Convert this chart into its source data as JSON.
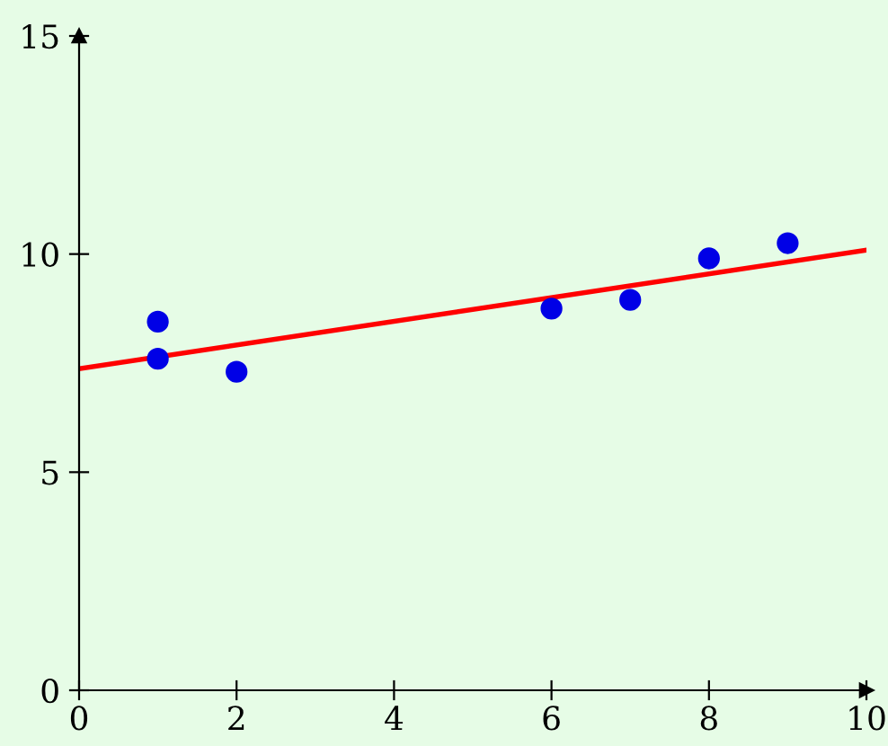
{
  "chart_data": {
    "type": "scatter",
    "xlim": [
      0,
      10
    ],
    "ylim": [
      0,
      15
    ],
    "xticks": [
      0,
      2,
      4,
      6,
      8,
      10
    ],
    "yticks": [
      0,
      5,
      10,
      15
    ],
    "grid": false,
    "series": [
      {
        "marker": "circle",
        "color": "#0000e6",
        "x": [
          1,
          1,
          2,
          6,
          7,
          8,
          9
        ],
        "values": [
          8.45,
          7.6,
          7.3,
          8.75,
          8.95,
          9.9,
          10.25
        ]
      },
      {
        "type": "line",
        "color": "#ff0000",
        "x": [
          0,
          10
        ],
        "values": [
          7.37,
          10.09
        ]
      }
    ]
  }
}
